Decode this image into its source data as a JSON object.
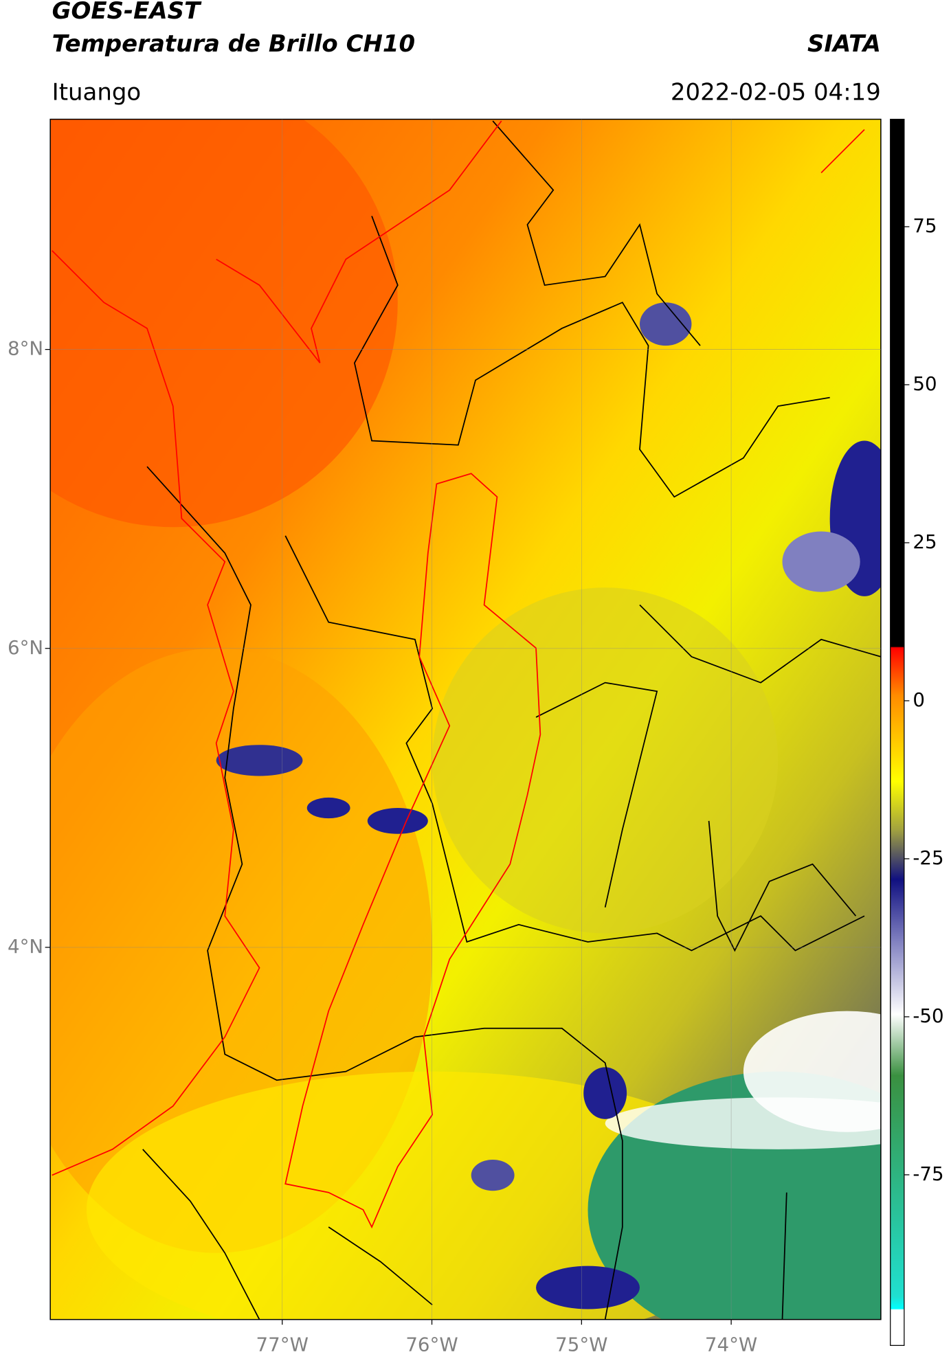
{
  "chart_data": {
    "type": "map",
    "title": "GOES-EAST",
    "subtitle": "Temperatura de Brillo CH10",
    "source": "SIATA",
    "region": "Ituango",
    "datetime": "2022-02-05 04:19",
    "xlim": [
      -78.55,
      -73.0
    ],
    "ylim": [
      1.51,
      9.54
    ],
    "xticks": [
      {
        "value": -77,
        "label": "77°W"
      },
      {
        "value": -76,
        "label": "76°W"
      },
      {
        "value": -75,
        "label": "75°W"
      },
      {
        "value": -74,
        "label": "74°W"
      }
    ],
    "yticks": [
      {
        "value": 8,
        "label": "8°N"
      },
      {
        "value": 6,
        "label": "6°N"
      },
      {
        "value": 4,
        "label": "4°N"
      }
    ],
    "grid": true,
    "colorbar": {
      "lim": [
        -102,
        92
      ],
      "ticks": [
        75,
        50,
        25,
        0,
        -25,
        -50,
        -75
      ]
    }
  }
}
